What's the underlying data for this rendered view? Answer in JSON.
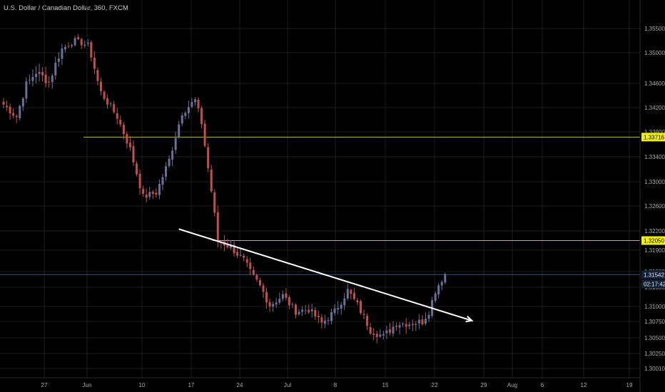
{
  "header": {
    "title": "U.S. Dollar / Canadian Dollar, 360, FXCM"
  },
  "colors": {
    "background": "#000000",
    "up_candle": "#6b6f99",
    "down_candle": "#c0504d",
    "grid": "#1c1c1c",
    "axis_text": "#a8a8a8",
    "resistance_line": "#b7bd3a",
    "last_price_line": "#2f4f7a",
    "trendline": "#ffffff",
    "label_yellow": "#f2f200"
  },
  "chart_data": {
    "type": "candlestick",
    "symbol": "USDCAD",
    "timeframe": "360",
    "x_ticks": [
      "27",
      "Jun",
      "10",
      "17",
      "24",
      "Jul",
      "8",
      "15",
      "22",
      "29",
      "Aug",
      "6",
      "12",
      "19"
    ],
    "y_ticks": [
      "1.35500",
      "1.35000",
      "1.34600",
      "1.34200",
      "1.33800",
      "1.33400",
      "1.33000",
      "1.32600",
      "1.32200",
      "1.31900",
      "1.31600",
      "1.31300",
      "1.31000",
      "1.30750",
      "1.30500",
      "1.30250",
      "1.30010"
    ],
    "horizontal_levels": [
      {
        "price": 1.33716,
        "label": "1.33716",
        "style": "yellow"
      },
      {
        "price": 1.3205,
        "label": "1.32050",
        "style": "yellow"
      },
      {
        "price": 1.31542,
        "label": "1.31542",
        "style": "last-price"
      }
    ],
    "countdown": "02:17:42",
    "trendline": {
      "from": {
        "index": 54,
        "price": 1.3223
      },
      "to": {
        "index": 108,
        "price": 1.3093
      },
      "arrow": true
    },
    "anchor_points": [
      [
        0,
        1.3425
      ],
      [
        4,
        1.3405
      ],
      [
        7,
        1.3458
      ],
      [
        10,
        1.3475
      ],
      [
        14,
        1.3462
      ],
      [
        18,
        1.3508
      ],
      [
        22,
        1.3525
      ],
      [
        26,
        1.3515
      ],
      [
        30,
        1.3445
      ],
      [
        35,
        1.3405
      ],
      [
        39,
        1.3352
      ],
      [
        43,
        1.3275
      ],
      [
        47,
        1.3282
      ],
      [
        51,
        1.3335
      ],
      [
        55,
        1.3412
      ],
      [
        59,
        1.3432
      ],
      [
        61,
        1.3395
      ],
      [
        64,
        1.3285
      ],
      [
        66,
        1.3205
      ],
      [
        70,
        1.3195
      ],
      [
        74,
        1.3175
      ],
      [
        78,
        1.3142
      ],
      [
        82,
        1.3102
      ],
      [
        86,
        1.3117
      ],
      [
        90,
        1.3092
      ],
      [
        94,
        1.3095
      ],
      [
        98,
        1.3072
      ],
      [
        102,
        1.3092
      ],
      [
        106,
        1.3125
      ],
      [
        109,
        1.3102
      ],
      [
        113,
        1.3062
      ],
      [
        117,
        1.3052
      ],
      [
        121,
        1.3072
      ],
      [
        125,
        1.3072
      ],
      [
        129,
        1.3075
      ],
      [
        131,
        1.3092
      ],
      [
        133,
        1.3125
      ],
      [
        136,
        1.3155
      ]
    ]
  }
}
